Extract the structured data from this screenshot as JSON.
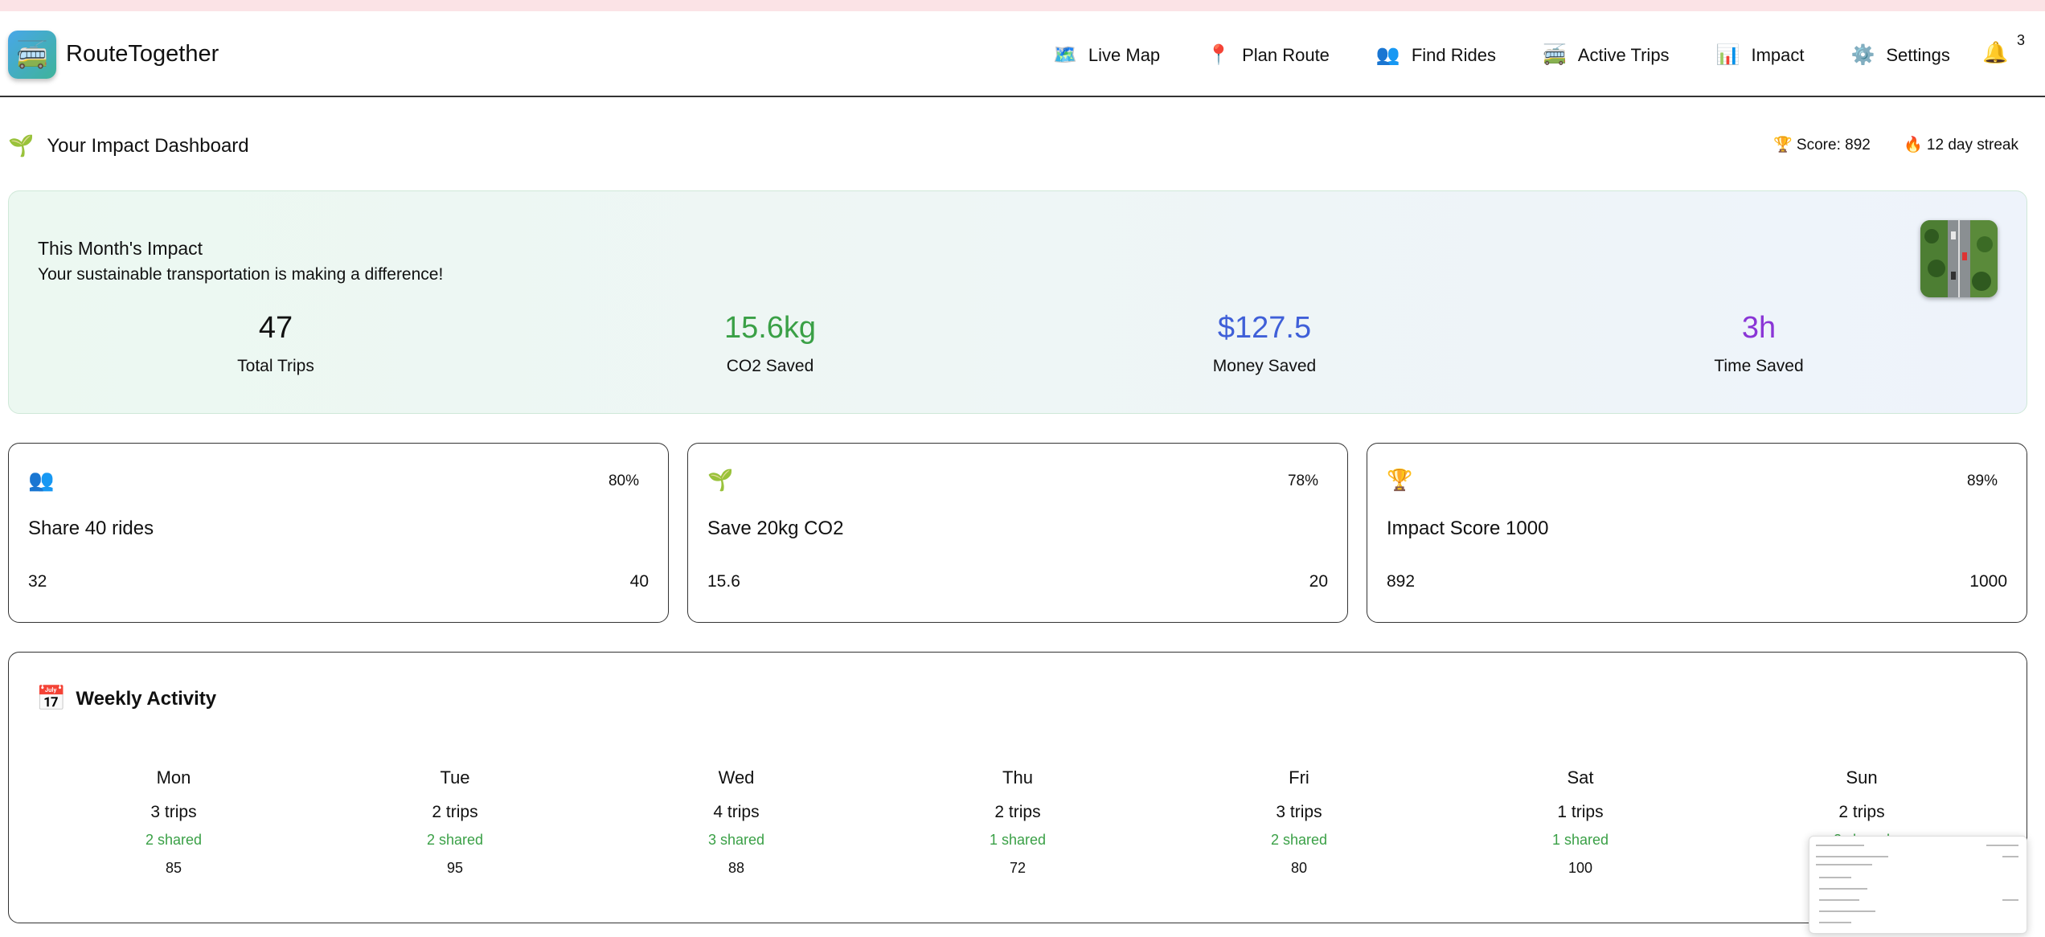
{
  "app": {
    "title": "RouteTogether",
    "logo_icon": "bus-icon"
  },
  "nav": [
    {
      "label": "Live Map",
      "icon": "🗺️"
    },
    {
      "label": "Plan Route",
      "icon": "📍"
    },
    {
      "label": "Find Rides",
      "icon": "👥"
    },
    {
      "label": "Active Trips",
      "icon": "🚎"
    },
    {
      "label": "Impact",
      "icon": "📊"
    },
    {
      "label": "Settings",
      "icon": "⚙️"
    }
  ],
  "notifications": {
    "count": "3"
  },
  "dashboard": {
    "title": "Your Impact Dashboard",
    "score_text": "🏆 Score: 892",
    "streak_text": "🔥 12 day streak"
  },
  "impact": {
    "title": "This Month's Impact",
    "subtitle": "Your sustainable transportation is making a difference!",
    "stats": [
      {
        "value": "47",
        "label": "Total Trips",
        "color": "#111111"
      },
      {
        "value": "15.6kg",
        "label": "CO2 Saved",
        "color": "#3aa046"
      },
      {
        "value": "$127.5",
        "label": "Money Saved",
        "color": "#3f5fd8"
      },
      {
        "value": "3h",
        "label": "Time Saved",
        "color": "#8a35d6"
      }
    ]
  },
  "goals": [
    {
      "icon": "👥",
      "percent": "80%",
      "title": "Share 40 rides",
      "current": "32",
      "target": "40"
    },
    {
      "icon": "🌱",
      "percent": "78%",
      "title": "Save 20kg CO2",
      "current": "15.6",
      "target": "20"
    },
    {
      "icon": "🏆",
      "percent": "89%",
      "title": "Impact Score 1000",
      "current": "892",
      "target": "1000"
    }
  ],
  "weekly": {
    "title": "Weekly Activity",
    "days": [
      {
        "day": "Mon",
        "trips": "3 trips",
        "shared": "2 shared",
        "score": "85"
      },
      {
        "day": "Tue",
        "trips": "2 trips",
        "shared": "2 shared",
        "score": "95"
      },
      {
        "day": "Wed",
        "trips": "4 trips",
        "shared": "3 shared",
        "score": "88"
      },
      {
        "day": "Thu",
        "trips": "2 trips",
        "shared": "1 shared",
        "score": "72"
      },
      {
        "day": "Fri",
        "trips": "3 trips",
        "shared": "2 shared",
        "score": "80"
      },
      {
        "day": "Sat",
        "trips": "1 trips",
        "shared": "1 shared",
        "score": "100"
      },
      {
        "day": "Sun",
        "trips": "2 trips",
        "shared": "2 shared",
        "score": ""
      }
    ]
  }
}
